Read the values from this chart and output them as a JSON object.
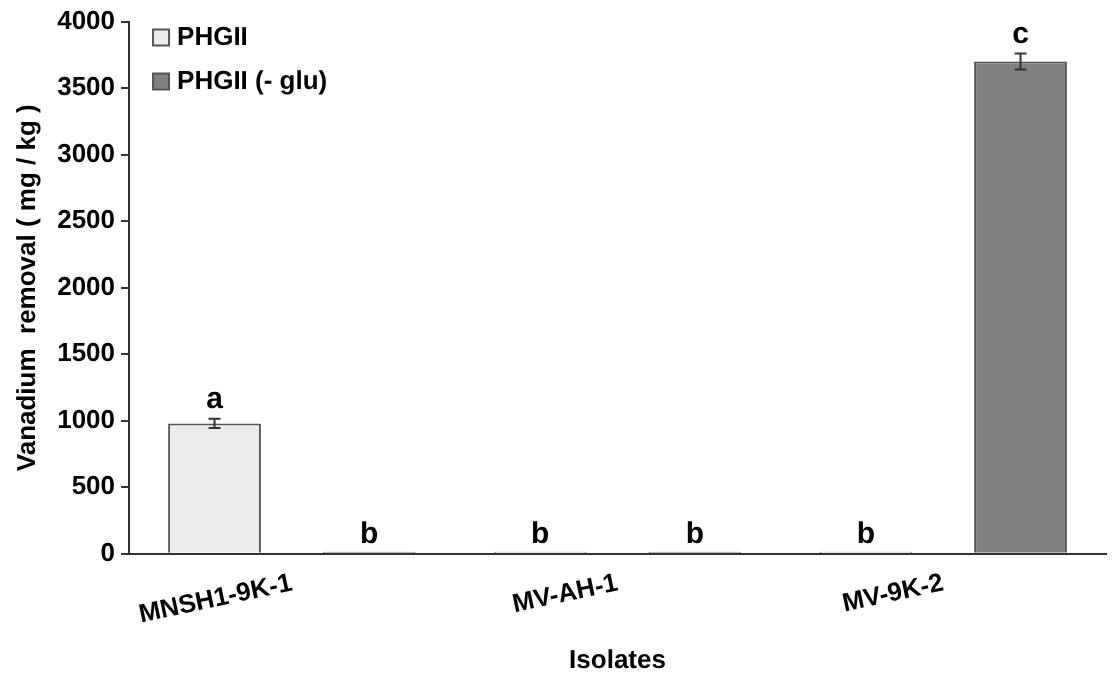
{
  "chart_data": {
    "type": "bar",
    "xlabel": "Isolates",
    "ylabel": "Vanadium  removal ( mg / kg )",
    "categories": [
      "MNSH1-9K-1",
      "MV-AH-1",
      "MV-9K-2"
    ],
    "series": [
      {
        "name": "PHGII",
        "color": "#ececec",
        "values": [
          980,
          0,
          0
        ],
        "errors": [
          35,
          null,
          null
        ],
        "value_labels": [
          "a",
          "b",
          "b"
        ]
      },
      {
        "name": "PHGII (- glu)",
        "color": "#808080",
        "values": [
          0,
          0,
          3700
        ],
        "errors": [
          null,
          null,
          60
        ],
        "value_labels": [
          "b",
          "b",
          "c"
        ]
      }
    ],
    "ylim": [
      0,
      4000
    ],
    "yticks": [
      0,
      500,
      1000,
      1500,
      2000,
      2500,
      3000,
      3500,
      4000
    ],
    "grid": false,
    "legend": "top left"
  }
}
